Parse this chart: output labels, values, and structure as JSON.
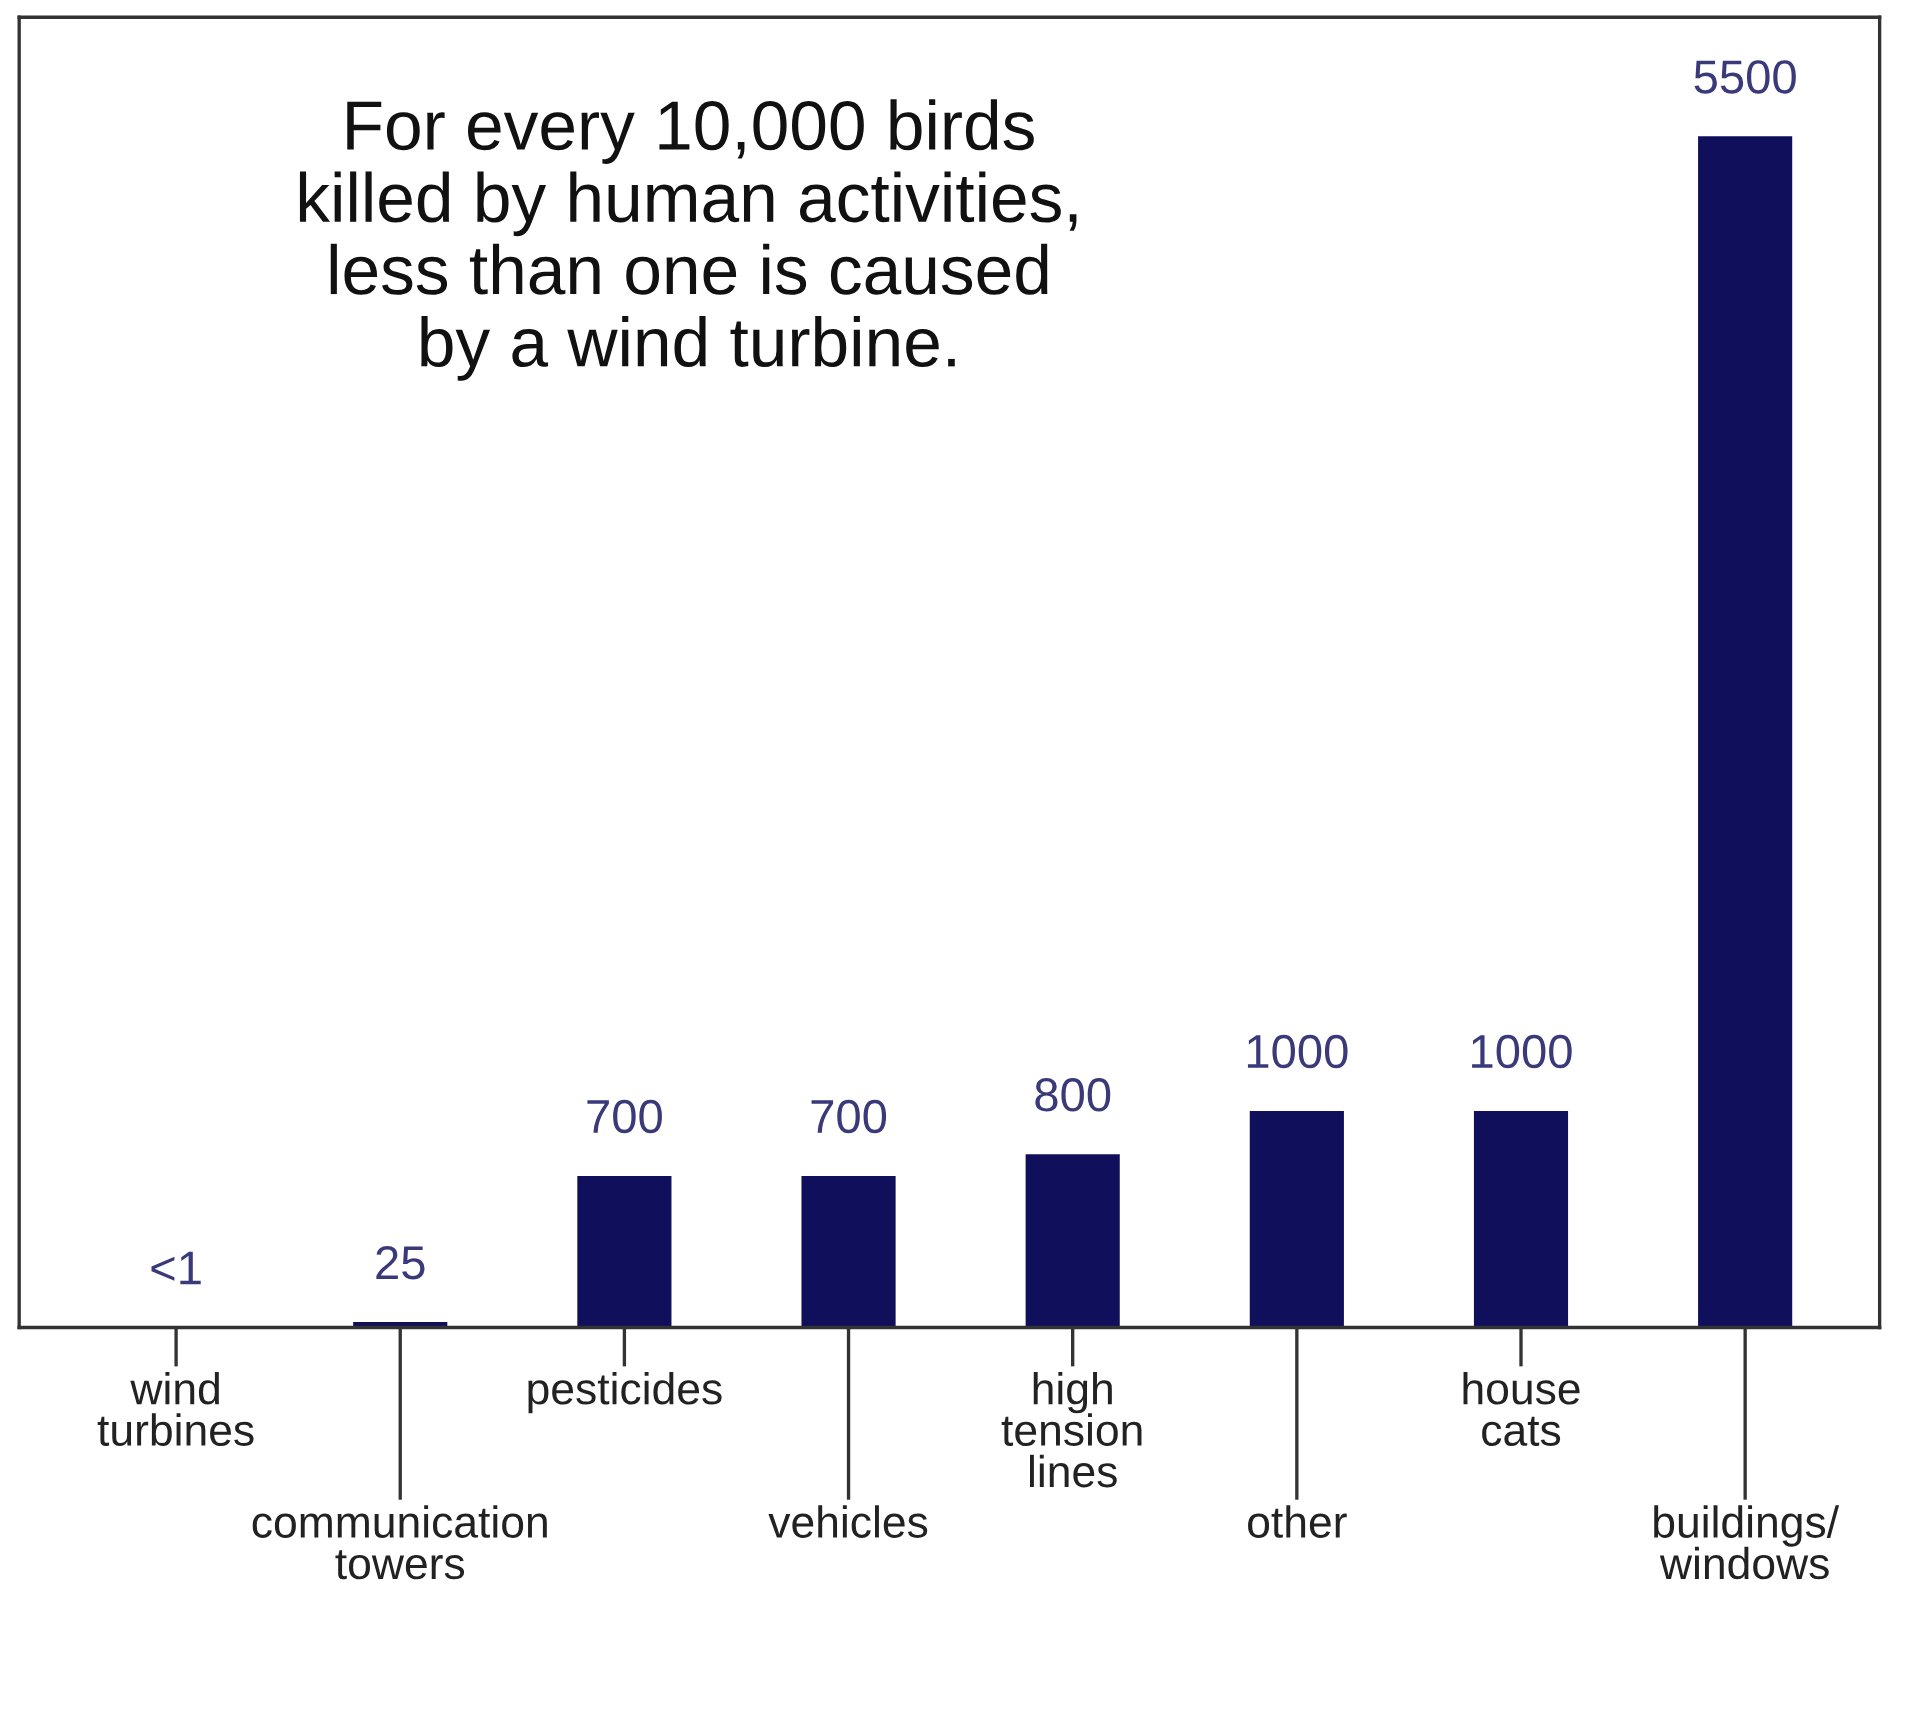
{
  "chart_data": {
    "type": "bar",
    "categories": [
      "wind\nturbines",
      "communication\ntowers",
      "pesticides",
      "vehicles",
      "high\ntension\nlines",
      "other",
      "house\ncats",
      "buildings/\nwindows"
    ],
    "values": [
      0,
      25,
      700,
      700,
      800,
      1000,
      1000,
      5500
    ],
    "value_labels": [
      "<1",
      "25",
      "700",
      "700",
      "800",
      "1000",
      "1000",
      "5500"
    ],
    "color": "#0f0f5c",
    "annotations": [
      "For every 10,000 birds\nkilled by human activities,\nless than one is caused\nby a wind turbine."
    ],
    "grid": false,
    "legend": false
  }
}
